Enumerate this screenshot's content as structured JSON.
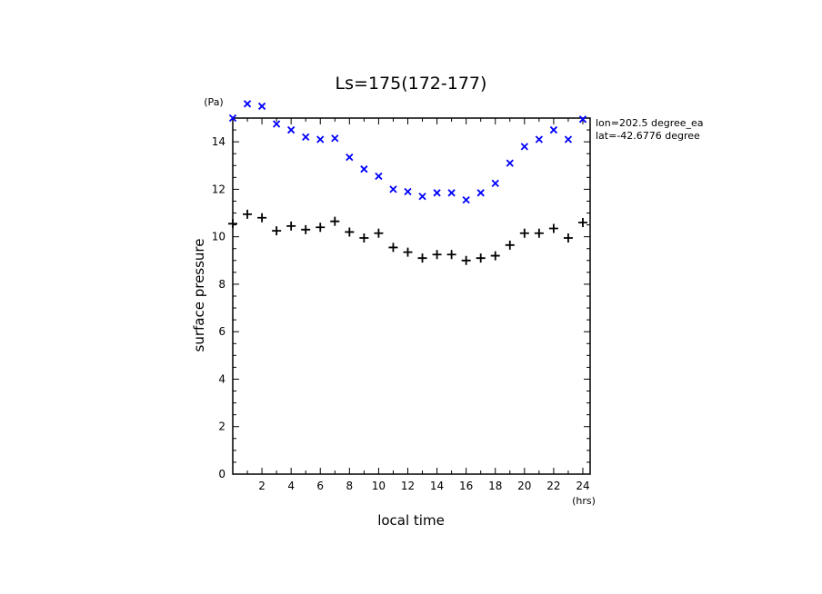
{
  "chart_data": {
    "type": "scatter",
    "title": "Ls=175(172-177)",
    "xlabel": "local time",
    "ylabel": "surface pressure",
    "xunit": "(hrs)",
    "yunit": "(Pa)",
    "xlim": [
      0,
      24.5
    ],
    "ylim": [
      0,
      15
    ],
    "xticks": [
      2,
      4,
      6,
      8,
      10,
      12,
      14,
      16,
      18,
      20,
      22,
      24
    ],
    "yticks": [
      0,
      2,
      4,
      6,
      8,
      10,
      12,
      14
    ],
    "annotations": [
      "lon=202.5 degree_ea",
      "lat=-42.6776 degree"
    ],
    "colors": {
      "series_x": "#0000ff",
      "series_plus": "#000000",
      "axes": "#000000"
    },
    "series": [
      {
        "marker": "x",
        "color": "#0000ff",
        "x": [
          0,
          1,
          2,
          3,
          4,
          5,
          6,
          7,
          8,
          9,
          10,
          11,
          12,
          13,
          14,
          15,
          16,
          17,
          18,
          19,
          20,
          21,
          22,
          23,
          24
        ],
        "y": [
          15.0,
          15.6,
          15.5,
          14.75,
          14.5,
          14.2,
          14.1,
          14.15,
          13.35,
          12.85,
          12.55,
          12.0,
          11.9,
          11.7,
          11.85,
          11.85,
          11.55,
          11.85,
          12.25,
          13.1,
          13.8,
          14.1,
          14.5,
          14.1,
          14.95
        ]
      },
      {
        "marker": "+",
        "color": "#000000",
        "x": [
          0,
          1,
          2,
          3,
          4,
          5,
          6,
          7,
          8,
          9,
          10,
          11,
          12,
          13,
          14,
          15,
          16,
          17,
          18,
          19,
          20,
          21,
          22,
          23,
          24
        ],
        "y": [
          10.55,
          10.95,
          10.8,
          10.25,
          10.45,
          10.3,
          10.4,
          10.65,
          10.2,
          9.95,
          10.15,
          9.55,
          9.35,
          9.1,
          9.25,
          9.25,
          9.0,
          9.1,
          9.2,
          9.65,
          10.15,
          10.15,
          10.35,
          9.95,
          10.6
        ]
      }
    ]
  }
}
